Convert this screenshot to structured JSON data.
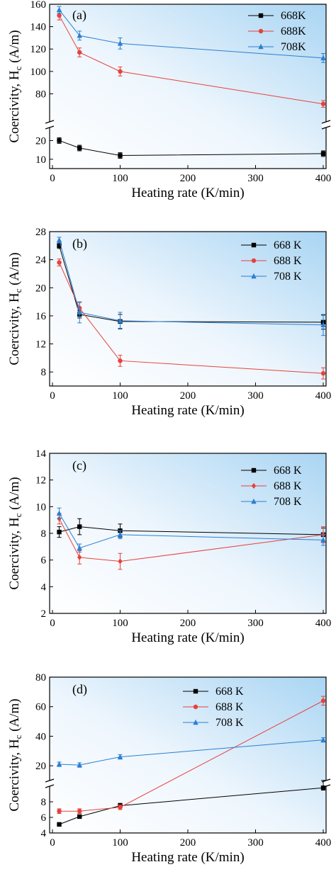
{
  "chart_data": [
    {
      "type": "line",
      "panel_label": "(a)",
      "xlabel": "Heating rate (K/min)",
      "ylabel": "Coercivity, H",
      "ylabel_sub": "c",
      "ylabel_unit": " (A/m)",
      "xlim": [
        0,
        400
      ],
      "xticks": [
        0,
        100,
        200,
        300,
        400
      ],
      "y_break": true,
      "ylim_lower": [
        5,
        27
      ],
      "yticks_lower": [
        10,
        20
      ],
      "ylim_upper": [
        55,
        160
      ],
      "yticks_upper": [
        80,
        100,
        120,
        140,
        160
      ],
      "grid": false,
      "legend_position": "top-right",
      "series": [
        {
          "name": "668K",
          "color": "#000000",
          "marker": "square",
          "x": [
            10,
            40,
            100,
            400
          ],
          "y": [
            20,
            16,
            12,
            13
          ],
          "err": [
            1.5,
            1.5,
            1.5,
            1.5
          ]
        },
        {
          "name": "688K",
          "color": "#e8413c",
          "marker": "circle",
          "x": [
            10,
            40,
            100,
            400
          ],
          "y": [
            150,
            117,
            100,
            71
          ],
          "err": [
            4,
            4,
            4,
            3
          ]
        },
        {
          "name": "708K",
          "color": "#2a7fd1",
          "marker": "triangle",
          "x": [
            10,
            40,
            100,
            400
          ],
          "y": [
            155,
            132,
            125,
            112
          ],
          "err": [
            3,
            4,
            5,
            4
          ]
        }
      ]
    },
    {
      "type": "line",
      "panel_label": "(b)",
      "xlabel": "Heating rate (K/min)",
      "ylabel": "Coercivity, H",
      "ylabel_sub": "c",
      "ylabel_unit": " (A/m)",
      "xlim": [
        0,
        400
      ],
      "xticks": [
        0,
        100,
        200,
        300,
        400
      ],
      "ylim": [
        6,
        28
      ],
      "yticks": [
        8,
        12,
        16,
        20,
        24,
        28
      ],
      "grid": false,
      "legend_position": "top-right",
      "series": [
        {
          "name": "668 K",
          "color": "#000000",
          "marker": "square",
          "x": [
            10,
            40,
            100,
            400
          ],
          "y": [
            26,
            16.2,
            15.2,
            15.1
          ],
          "err": [
            0.4,
            0.5,
            1.0,
            1.0
          ]
        },
        {
          "name": "688 K",
          "color": "#e8413c",
          "marker": "circle",
          "x": [
            10,
            40,
            100,
            400
          ],
          "y": [
            23.6,
            17.1,
            9.6,
            7.8
          ],
          "err": [
            0.5,
            0.8,
            0.8,
            0.8
          ]
        },
        {
          "name": "708 K",
          "color": "#2a7fd1",
          "marker": "triangle",
          "x": [
            10,
            40,
            100,
            400
          ],
          "y": [
            26.8,
            16.5,
            15.3,
            14.7
          ],
          "err": [
            0.4,
            1.5,
            1.2,
            1.5
          ]
        }
      ]
    },
    {
      "type": "line",
      "panel_label": "(c)",
      "xlabel": "Heating rate (K/min)",
      "ylabel": "Coercivity, H",
      "ylabel_sub": "c",
      "ylabel_unit": " (A/m)",
      "xlim": [
        0,
        400
      ],
      "xticks": [
        0,
        100,
        200,
        300,
        400
      ],
      "ylim": [
        2,
        14
      ],
      "yticks": [
        2,
        4,
        6,
        8,
        10,
        12,
        14
      ],
      "grid": false,
      "legend_position": "top-right",
      "series": [
        {
          "name": "668 K",
          "color": "#000000",
          "marker": "square",
          "x": [
            10,
            40,
            100,
            400
          ],
          "y": [
            8.1,
            8.5,
            8.2,
            7.9
          ],
          "err": [
            0.4,
            0.6,
            0.5,
            0.5
          ]
        },
        {
          "name": "688 K",
          "color": "#e8413c",
          "marker": "diamond",
          "x": [
            10,
            40,
            100,
            400
          ],
          "y": [
            9.1,
            6.2,
            5.9,
            7.9
          ],
          "err": [
            0.4,
            0.5,
            0.6,
            0.6
          ]
        },
        {
          "name": "708 K",
          "color": "#2a7fd1",
          "marker": "triangle",
          "x": [
            10,
            40,
            100,
            400
          ],
          "y": [
            9.5,
            6.9,
            7.9,
            7.5
          ],
          "err": [
            0.4,
            0.3,
            0.3,
            0.4
          ]
        }
      ]
    },
    {
      "type": "line",
      "panel_label": "(d)",
      "xlabel": "Heating rate (K/min)",
      "ylabel": "Coercivity, H",
      "ylabel_sub": "c",
      "ylabel_unit": " (A/m)",
      "xlim": [
        0,
        400
      ],
      "xticks": [
        0,
        100,
        200,
        300,
        400
      ],
      "y_break": true,
      "ylim_lower": [
        4,
        10
      ],
      "yticks_lower": [
        4,
        6,
        8
      ],
      "ylim_upper": [
        10,
        80
      ],
      "yticks_upper": [
        20,
        40,
        60,
        80
      ],
      "grid": false,
      "legend_position": "top-center",
      "series": [
        {
          "name": "668 K",
          "color": "#000000",
          "marker": "square",
          "x": [
            10,
            40,
            100,
            400
          ],
          "y": [
            5.1,
            6.1,
            7.5,
            9.8
          ],
          "err": [
            0.2,
            0.2,
            0.3,
            0.3
          ]
        },
        {
          "name": "688 K",
          "color": "#e8413c",
          "marker": "circle",
          "x": [
            10,
            40,
            100,
            400
          ],
          "y": [
            6.8,
            6.8,
            7.3,
            64
          ],
          "err": [
            0.3,
            0.3,
            0.3,
            3
          ]
        },
        {
          "name": "708 K",
          "color": "#2a7fd1",
          "marker": "triangle",
          "x": [
            10,
            40,
            100,
            400
          ],
          "y": [
            21,
            20.5,
            26,
            37.5
          ],
          "err": [
            1.5,
            1.5,
            1.5,
            1.5
          ]
        }
      ]
    }
  ]
}
